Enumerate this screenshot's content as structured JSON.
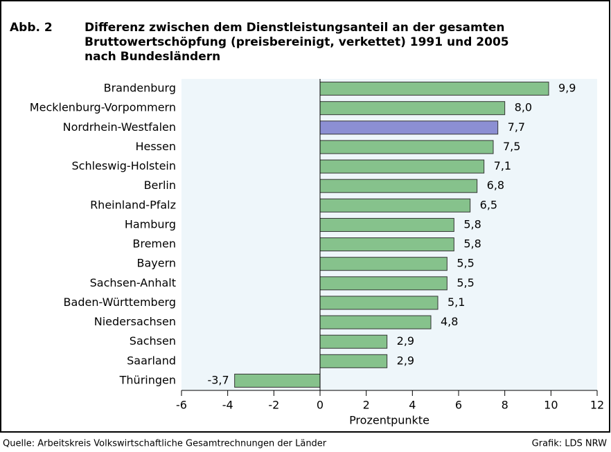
{
  "chart_data": {
    "type": "bar",
    "orientation": "horizontal",
    "label": "Abb. 2",
    "title": [
      "Differenz zwischen dem Dienstleistungsanteil an der gesamten",
      "Bruttowertschöpfung (preisbereinigt, verkettet) 1991 und 2005",
      "nach Bundesländern"
    ],
    "categories": [
      "Brandenburg",
      "Mecklenburg-Vorpommern",
      "Nordrhein-Westfalen",
      "Hessen",
      "Schleswig-Holstein",
      "Berlin",
      "Rheinland-Pfalz",
      "Hamburg",
      "Bremen",
      "Bayern",
      "Sachsen-Anhalt",
      "Baden-Württemberg",
      "Niedersachsen",
      "Sachsen",
      "Saarland",
      "Thüringen"
    ],
    "values": [
      9.9,
      8.0,
      7.7,
      7.5,
      7.1,
      6.8,
      6.5,
      5.8,
      5.8,
      5.5,
      5.5,
      5.1,
      4.8,
      2.9,
      2.9,
      -3.7
    ],
    "value_labels": [
      "9,9",
      "8,0",
      "7,7",
      "7,5",
      "7,1",
      "6,8",
      "6,5",
      "5,8",
      "5,8",
      "5,5",
      "5,5",
      "5,1",
      "4,8",
      "2,9",
      "2,9",
      "-3,7"
    ],
    "colors": [
      "#86c28c",
      "#86c28c",
      "#8c8fd3",
      "#86c28c",
      "#86c28c",
      "#86c28c",
      "#86c28c",
      "#86c28c",
      "#86c28c",
      "#86c28c",
      "#86c28c",
      "#86c28c",
      "#86c28c",
      "#86c28c",
      "#86c28c",
      "#86c28c"
    ],
    "xlim": [
      -6,
      12
    ],
    "xticks": [
      -6,
      -4,
      -2,
      0,
      2,
      4,
      6,
      8,
      10,
      12
    ],
    "xlabel": "Prozentpunkte",
    "source": "Quelle: Arbeitskreis Volkswirtschaftliche Gesamtrechnungen der Länder",
    "credit": "Grafik: LDS NRW",
    "plot_background": "#eef6fa"
  }
}
